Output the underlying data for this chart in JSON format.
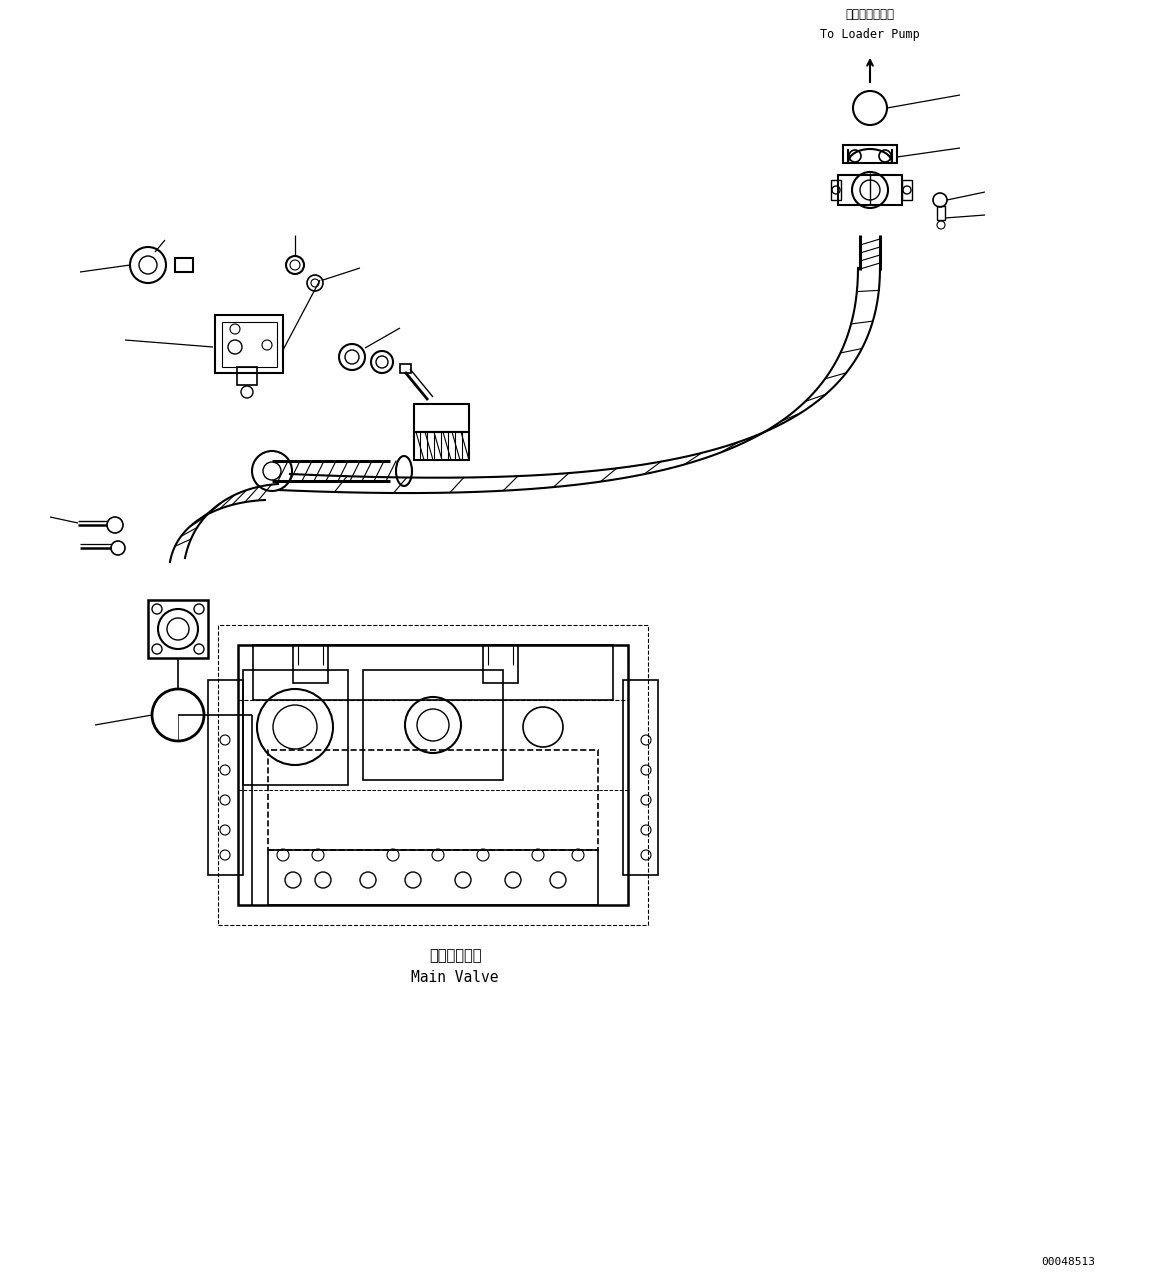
{
  "bg_color": "#ffffff",
  "lc": "#000000",
  "label_top1": "ローダポンプへ",
  "label_top2": "To Loader Pump",
  "label_valve1": "メインバルブ",
  "label_valve2": "Main Valve",
  "part_number": "00048513",
  "figw": 11.63,
  "figh": 12.86,
  "dpi": 100
}
